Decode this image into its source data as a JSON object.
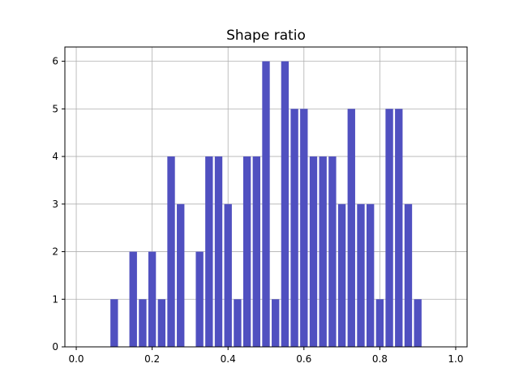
{
  "chart_data": {
    "type": "bar",
    "title": "Shape ratio",
    "xlabel": "",
    "ylabel": "",
    "xlim": [
      -0.03,
      1.03
    ],
    "ylim": [
      0,
      6.3
    ],
    "bar_width": 0.02,
    "bar_color": "#5050c0",
    "grid": true,
    "x": [
      0.1,
      0.15,
      0.175,
      0.2,
      0.225,
      0.25,
      0.275,
      0.325,
      0.35,
      0.375,
      0.4,
      0.425,
      0.45,
      0.475,
      0.5,
      0.525,
      0.55,
      0.575,
      0.6,
      0.625,
      0.65,
      0.675,
      0.7,
      0.725,
      0.75,
      0.775,
      0.8,
      0.825,
      0.85,
      0.875,
      0.9
    ],
    "values": [
      1,
      2,
      1,
      2,
      1,
      4,
      3,
      2,
      4,
      4,
      3,
      1,
      4,
      4,
      6,
      1,
      6,
      5,
      5,
      4,
      4,
      4,
      3,
      5,
      3,
      3,
      1,
      5,
      5,
      3,
      1
    ],
    "xticks": [
      0.0,
      0.2,
      0.4,
      0.6,
      0.8,
      1.0
    ],
    "xtick_labels": [
      "0.0",
      "0.2",
      "0.4",
      "0.6",
      "0.8",
      "1.0"
    ],
    "yticks": [
      0,
      1,
      2,
      3,
      4,
      5,
      6
    ],
    "ytick_labels": [
      "0",
      "1",
      "2",
      "3",
      "4",
      "5",
      "6"
    ]
  }
}
